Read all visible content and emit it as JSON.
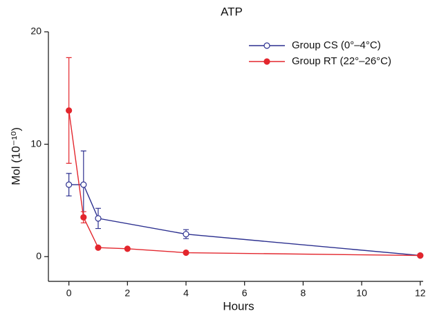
{
  "chart_data": {
    "type": "line",
    "title": "ATP",
    "xlabel": "Hours",
    "ylabel": "Mol (10⁻¹⁰)",
    "xlim": [
      -0.7,
      12.1
    ],
    "ylim": [
      -2.2,
      20
    ],
    "xticks": [
      0,
      2,
      4,
      6,
      8,
      10,
      12
    ],
    "yticks": [
      0,
      10,
      20
    ],
    "legend": "upper right",
    "series": [
      {
        "name": "Group CS (0°–4°C)",
        "color": "#2b2f8f",
        "marker": "open",
        "x": [
          0,
          0.5,
          1,
          4,
          12
        ],
        "values": [
          6.4,
          6.4,
          3.4,
          2.0,
          0.1
        ],
        "error": [
          1.0,
          3.0,
          0.9,
          0.4,
          null
        ]
      },
      {
        "name": "Group RT (22°–26°C)",
        "color": "#e3262d",
        "marker": "filled",
        "x": [
          0,
          0.5,
          1,
          2,
          4,
          12
        ],
        "values": [
          13.0,
          3.5,
          0.8,
          0.7,
          0.35,
          0.1
        ],
        "error": [
          4.7,
          0.5,
          null,
          null,
          null,
          null
        ]
      }
    ]
  }
}
